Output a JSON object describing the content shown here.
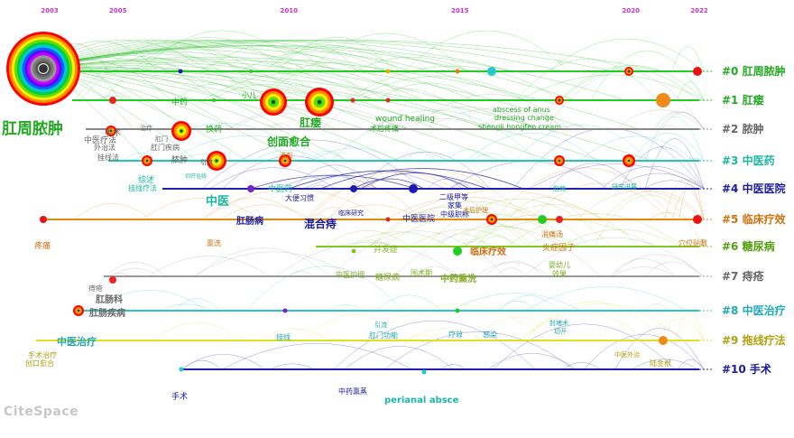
{
  "years": [
    "2003",
    "2005",
    "2010",
    "2015",
    "2020",
    "2022"
  ],
  "clusters": [
    {
      "id": "#0",
      "label": "#0 肛周脓肿",
      "color": "#22aa22",
      "line": "#22cc22"
    },
    {
      "id": "#1",
      "label": "#1 肛瘘",
      "color": "#22aa22",
      "line": "#22cc22"
    },
    {
      "id": "#2",
      "label": "#2 脓肿",
      "color": "#666666",
      "line": "#888888"
    },
    {
      "id": "#3",
      "label": "#3 中医药",
      "color": "#19b8a0",
      "line": "#20c8b0"
    },
    {
      "id": "#4",
      "label": "#4 中医医院",
      "color": "#1a1aa0",
      "line": "#2020b0"
    },
    {
      "id": "#5",
      "label": "#5 临床疗效",
      "color": "#d07010",
      "line": "#e08a10"
    },
    {
      "id": "#6",
      "label": "#6 糖尿病",
      "color": "#55a010",
      "line": "#80c820"
    },
    {
      "id": "#7",
      "label": "#7 痔疮",
      "color": "#666666",
      "line": "#999999"
    },
    {
      "id": "#8",
      "label": "#8 中医治疗",
      "color": "#20a8b8",
      "line": "#30c0d0"
    },
    {
      "id": "#9",
      "label": "#9 拖线疗法",
      "color": "#b0a010",
      "line": "#e0e020"
    },
    {
      "id": "#10",
      "label": "#10 手术",
      "color": "#1a1aa0",
      "line": "#2020b0"
    }
  ],
  "keywords": [
    {
      "text": "肛周脓肿",
      "color": "#22aa22"
    },
    {
      "text": "中药",
      "color": "#22aa22"
    },
    {
      "text": "小儿",
      "color": "#22aa22"
    },
    {
      "text": "肛瘘",
      "color": "#22aa22"
    },
    {
      "text": "创面愈合",
      "color": "#22aa22"
    },
    {
      "text": "wound healing",
      "color": "#22aa22"
    },
    {
      "text": "术后疼痛",
      "color": "#22aa22"
    },
    {
      "text": "abscess of anus",
      "color": "#22aa22"
    },
    {
      "text": "dressing change",
      "color": "#22aa22"
    },
    {
      "text": "shengji hongfen cream",
      "color": "#22aa22"
    },
    {
      "text": "治疗",
      "color": "#666666"
    },
    {
      "text": "手术",
      "color": "#666666"
    },
    {
      "text": "外治法",
      "color": "#666666"
    },
    {
      "text": "中医疗法",
      "color": "#666666"
    },
    {
      "text": "挂线法",
      "color": "#666666"
    },
    {
      "text": "肛门",
      "color": "#666666"
    },
    {
      "text": "肛门疾病",
      "color": "#666666"
    },
    {
      "text": "换药",
      "color": "#22aa22"
    },
    {
      "text": "脓肿",
      "color": "#555555"
    },
    {
      "text": "引流",
      "color": "#555555"
    },
    {
      "text": "浅剂",
      "color": "#d07010"
    },
    {
      "text": "综述",
      "color": "#19b8a0"
    },
    {
      "text": "挂线疗法",
      "color": "#19b8a0"
    },
    {
      "text": "切开挂线",
      "color": "#19b8a0"
    },
    {
      "text": "肛痈",
      "color": "#19b8a0"
    },
    {
      "text": "研究进展",
      "color": "#19b8a0"
    },
    {
      "text": "中医",
      "color": "#19b8a0"
    },
    {
      "text": "中医药",
      "color": "#19b8a0"
    },
    {
      "text": "大便习惯",
      "color": "#1a1aa0"
    },
    {
      "text": "二级甲等",
      "color": "#1a1aa0"
    },
    {
      "text": "家集",
      "color": "#1a1aa0"
    },
    {
      "text": "中级职称",
      "color": "#1a1aa0"
    },
    {
      "text": "肛肠病",
      "color": "#1a1aa0"
    },
    {
      "text": "混合痔",
      "color": "#1a1aa0"
    },
    {
      "text": "临床研究",
      "color": "#1a1aa0"
    },
    {
      "text": "中医医院",
      "color": "#1a1aa0"
    },
    {
      "text": "疼痛",
      "color": "#d07010"
    },
    {
      "text": "熏洗",
      "color": "#d07010"
    },
    {
      "text": "术后护理",
      "color": "#d07010"
    },
    {
      "text": "消痛汤",
      "color": "#d07010"
    },
    {
      "text": "炎症因子",
      "color": "#d07010"
    },
    {
      "text": "穴位贴敷",
      "color": "#d07010"
    },
    {
      "text": "并发症",
      "color": "#80b020"
    },
    {
      "text": "临床疗效",
      "color": "#d07010"
    },
    {
      "text": "中医护理",
      "color": "#80b020"
    },
    {
      "text": "糖尿病",
      "color": "#80b020"
    },
    {
      "text": "围术期",
      "color": "#80b020"
    },
    {
      "text": "中药熏洗",
      "color": "#80b020"
    },
    {
      "text": "婴幼儿",
      "color": "#80b020"
    },
    {
      "text": "效果",
      "color": "#80b020"
    },
    {
      "text": "痔疮",
      "color": "#666666"
    },
    {
      "text": "肛肠科",
      "color": "#666666"
    },
    {
      "text": "肛肠疾病",
      "color": "#666666"
    },
    {
      "text": "中医治疗",
      "color": "#20a8b8"
    },
    {
      "text": "引流",
      "color": "#20a8b8"
    },
    {
      "text": "肛门功能",
      "color": "#20a8b8"
    },
    {
      "text": "疗效",
      "color": "#20a8b8"
    },
    {
      "text": "感染",
      "color": "#20a8b8"
    },
    {
      "text": "封堵术",
      "color": "#20a8b8"
    },
    {
      "text": "切开",
      "color": "#20a8b8"
    },
    {
      "text": "挂线",
      "color": "#20a8b8"
    },
    {
      "text": "手术治疗",
      "color": "#b0a010"
    },
    {
      "text": "创口愈合",
      "color": "#b0a010"
    },
    {
      "text": "中医外治",
      "color": "#b0a010"
    },
    {
      "text": "陆金根",
      "color": "#b0a010"
    },
    {
      "text": "手术",
      "color": "#1a1aa0"
    },
    {
      "text": "中药熏蒸",
      "color": "#1a1aa0"
    },
    {
      "text": "perianal absce",
      "color": "#19b8a0"
    }
  ],
  "logo": "CiteSpace"
}
